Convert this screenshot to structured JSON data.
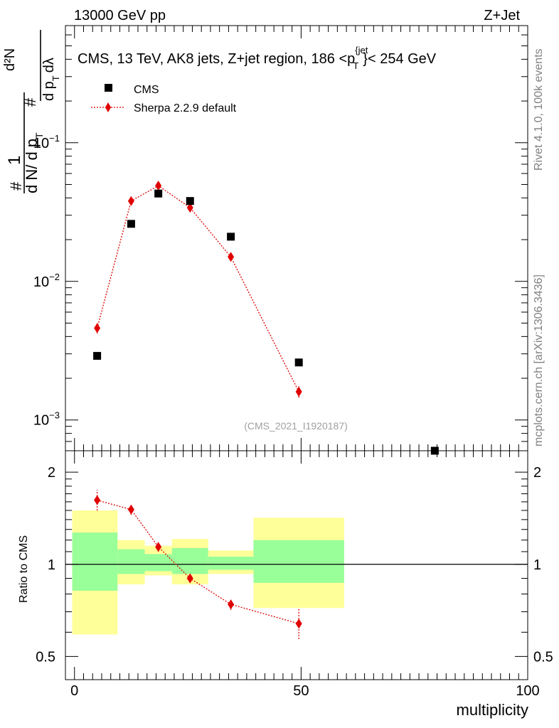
{
  "header": {
    "left": "13000 GeV pp",
    "right": "Z+Jet"
  },
  "side_labels": {
    "rivet": "Rivet 4.1.0,  100k events",
    "mcplots": "mcplots.cern.ch [arXiv:1306.3436]"
  },
  "chart_data": [
    {
      "type": "scatter",
      "panel": "main",
      "title": "CMS, 13 TeV, AK8 jets, Z+jet region, 186 <p_T^{jet}}< 254 GeV",
      "title_parts": {
        "main": "CMS, 13 TeV, AK8 jets, Z+jet region, 186 <p",
        "sup": "{jet",
        "sub": "T",
        "tail": "}< 254 GeV"
      },
      "ylabel": "1/(dN/dp_T) d²N/(dp_T dλ)",
      "ylabel_parts": {
        "hash": "#",
        "one": "1",
        "den_main": "d N/ d p",
        "den_sub": "T",
        "num": "d²N",
        "num_den_main": "d p",
        "num_den_sub": "T",
        "num_den_tail": "dλ"
      },
      "yscale": "log",
      "ylim": [
        0.0006,
        0.7
      ],
      "xlim": [
        -2,
        100
      ],
      "ytick_labels": [
        {
          "value": 0.1,
          "base": "10",
          "exp": "−1"
        },
        {
          "value": 0.01,
          "base": "10",
          "exp": "−2"
        },
        {
          "value": 0.001,
          "base": "10",
          "exp": "−3"
        }
      ],
      "watermark": "(CMS_2021_I1920187)",
      "legend": [
        "CMS",
        "Sherpa 2.2.9 default"
      ],
      "legend_position": "top-left",
      "series": [
        {
          "name": "CMS",
          "color": "#000000",
          "marker": "square",
          "x": [
            5,
            12.5,
            18.5,
            25.5,
            34.5,
            49.5,
            79.5
          ],
          "values": [
            0.0029,
            0.026,
            0.043,
            0.038,
            0.021,
            0.0026,
            0.0006
          ]
        },
        {
          "name": "Sherpa 2.2.9 default",
          "color": "#e00000",
          "marker": "diamond",
          "line": "dotted",
          "x": [
            5,
            12.5,
            18.5,
            25.5,
            34.5,
            49.5
          ],
          "values": [
            0.0046,
            0.038,
            0.049,
            0.034,
            0.015,
            0.0016
          ],
          "err_low": [
            0.0042,
            0.0365,
            0.0475,
            0.0325,
            0.0143,
            0.00145
          ],
          "err_high": [
            0.005,
            0.0395,
            0.0505,
            0.0355,
            0.0157,
            0.00175
          ]
        }
      ]
    },
    {
      "type": "line",
      "panel": "ratio",
      "ylabel": "Ratio to CMS",
      "xlabel": "multiplicity",
      "yscale": "log",
      "ylim": [
        0.42,
        2.35
      ],
      "xlim": [
        -2,
        100
      ],
      "yticks": [
        0.5,
        1,
        2
      ],
      "ytick_labels": [
        "0.5",
        "1",
        "2"
      ],
      "xticks": [
        0,
        50,
        100
      ],
      "xtick_labels": [
        "0",
        "50",
        "100"
      ],
      "reference_line": 1,
      "uncertainty_bands": [
        {
          "x0": -0.5,
          "x1": 9.5,
          "yellow": [
            0.59,
            1.5
          ],
          "green": [
            0.82,
            1.27
          ]
        },
        {
          "x0": 9.5,
          "x1": 15.5,
          "yellow": [
            0.86,
            1.2
          ],
          "green": [
            0.93,
            1.12
          ]
        },
        {
          "x0": 15.5,
          "x1": 21.5,
          "yellow": [
            0.92,
            1.15
          ],
          "green": [
            0.95,
            1.08
          ]
        },
        {
          "x0": 21.5,
          "x1": 29.5,
          "yellow": [
            0.86,
            1.21
          ],
          "green": [
            0.93,
            1.13
          ]
        },
        {
          "x0": 29.5,
          "x1": 39.5,
          "yellow": [
            0.93,
            1.11
          ],
          "green": [
            0.96,
            1.06
          ]
        },
        {
          "x0": 39.5,
          "x1": 59.5,
          "yellow": [
            0.72,
            1.42
          ],
          "green": [
            0.87,
            1.2
          ]
        }
      ],
      "series": [
        {
          "name": "Sherpa 2.2.9 default",
          "color": "#e00000",
          "marker": "diamond",
          "line": "dotted",
          "x": [
            5,
            12.5,
            18.5,
            25.5,
            34.5,
            49.5
          ],
          "values": [
            1.62,
            1.51,
            1.14,
            0.9,
            0.74,
            0.64
          ],
          "err_low": [
            1.5,
            1.45,
            1.1,
            0.87,
            0.71,
            0.57
          ],
          "err_high": [
            1.75,
            1.57,
            1.18,
            0.93,
            0.77,
            0.72
          ]
        }
      ]
    }
  ]
}
